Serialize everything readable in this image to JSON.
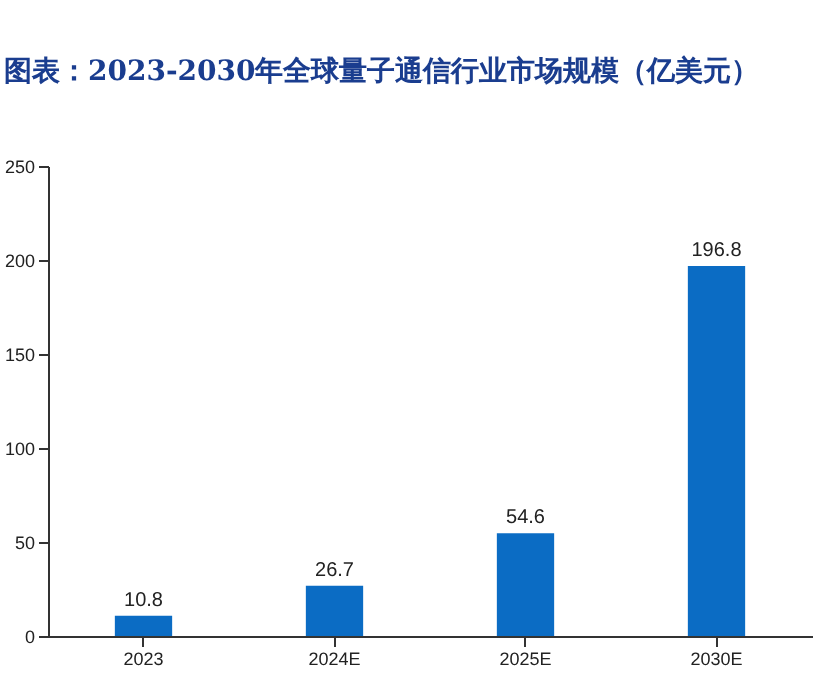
{
  "chart_data": {
    "type": "bar",
    "title": "图表：2023-2030年全球量子通信行业市场规模（亿美元）",
    "categories": [
      "2023",
      "2024E",
      "2025E",
      "2030E"
    ],
    "values": [
      10.8,
      26.7,
      54.6,
      196.8
    ],
    "color": "#0b6cc4",
    "ylim": [
      0,
      250
    ],
    "yticks": [
      0,
      50,
      100,
      150,
      200,
      250
    ],
    "data_labels": true
  }
}
